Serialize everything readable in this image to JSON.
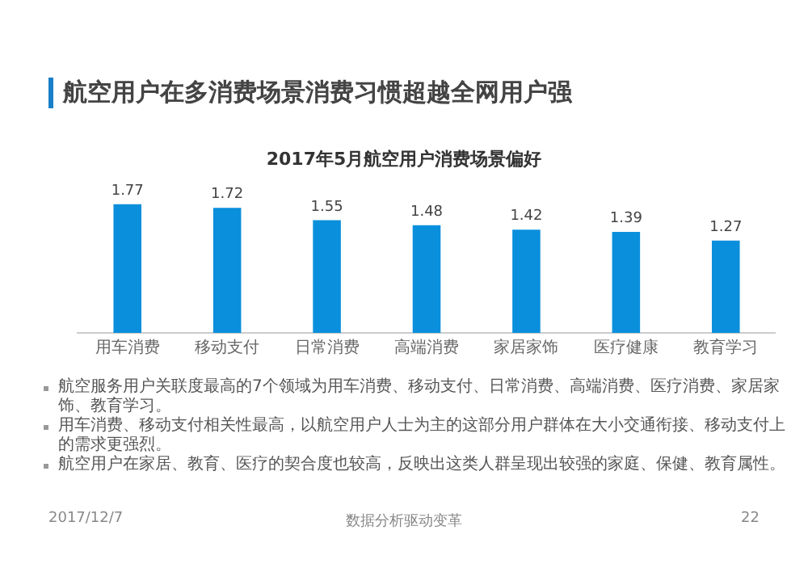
{
  "chart_data": {
    "type": "bar",
    "title": "航空用户在多消费场景消费习惯超越全网用户强",
    "subtitle": "2017年5月航空用户消费场景偏好",
    "categories": [
      "用车消费",
      "移动支付",
      "日常消费",
      "高端消费",
      "家居家饰",
      "医疗健康",
      "教育学习"
    ],
    "values": [
      1.77,
      1.72,
      1.55,
      1.48,
      1.42,
      1.39,
      1.27
    ],
    "color": "#0a8fdc",
    "data_labels": true,
    "relative": false,
    "grid": false,
    "legend": false,
    "annotations": [
      "航空服务用户关联度最高的7个领域为用车消费、移动支付、日常消费、高端消费、医疗消费、家居家饰、教育学习。",
      "用车消费、移动支付相关性最高，以航空用户人士为主的这部分用户群体在大小交通衔接、移动支付上的需求更强烈。",
      "航空用户在家居、教育、医疗的契合度也较高，反映出这类人群呈现出较强的家庭、保健、教育属性。",
      "2017/12/7",
      "数据分析驱动变革",
      "22"
    ]
  }
}
